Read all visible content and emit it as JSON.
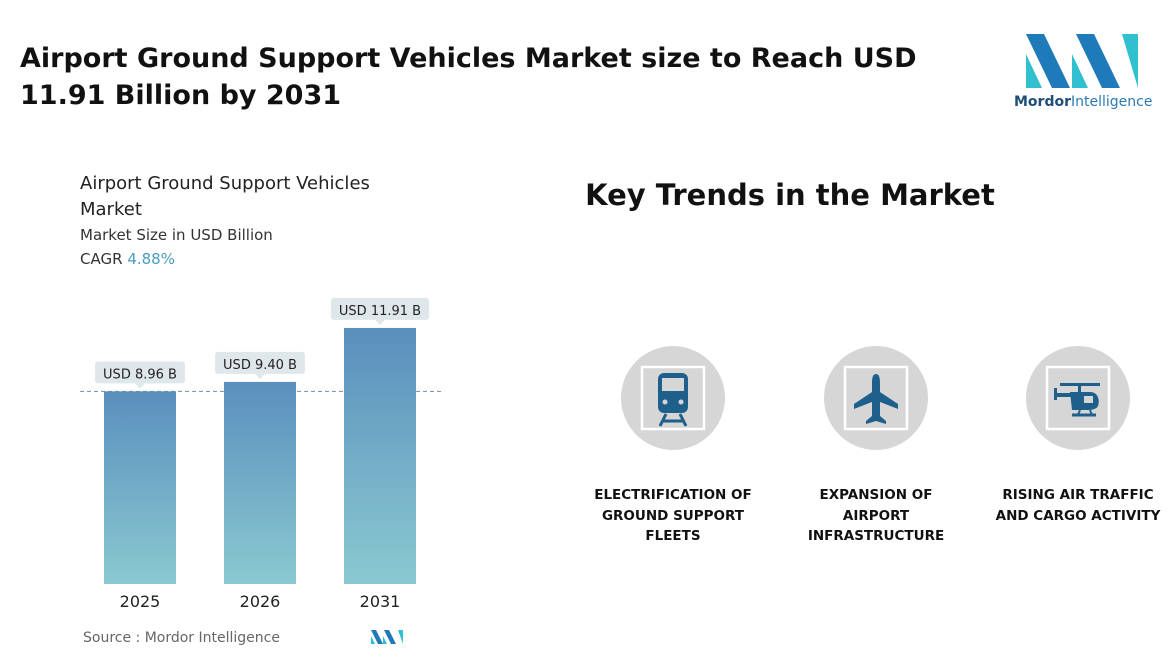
{
  "header": {
    "title": "Airport Ground Support Vehicles Market size to Reach USD 11.91 Billion by 2031",
    "logo": {
      "name": "Mordor",
      "suffix": "Intelligence"
    }
  },
  "chart_data": {
    "type": "bar",
    "title": "Airport Ground Support Vehicles Market",
    "subtitle": "Market Size in USD Billion",
    "cagr_label": "CAGR",
    "cagr": "4.88%",
    "categories": [
      "2025",
      "2026",
      "2031"
    ],
    "values": [
      8.96,
      9.4,
      11.91
    ],
    "value_labels": [
      "USD 8.96 B",
      "USD 9.40 B",
      "USD 11.91 B"
    ],
    "colors": [
      "#5a8fbd",
      "#8ac9d1"
    ],
    "source": "Source : Mordor Intelligence"
  },
  "trends": {
    "title": "Key Trends in the Market",
    "items": [
      "ELECTRIFICATION OF GROUND SUPPORT FLEETS",
      "EXPANSION OF AIRPORT INFRASTRUCTURE",
      "RISING AIR TRAFFIC AND CARGO ACTIVITY"
    ]
  }
}
